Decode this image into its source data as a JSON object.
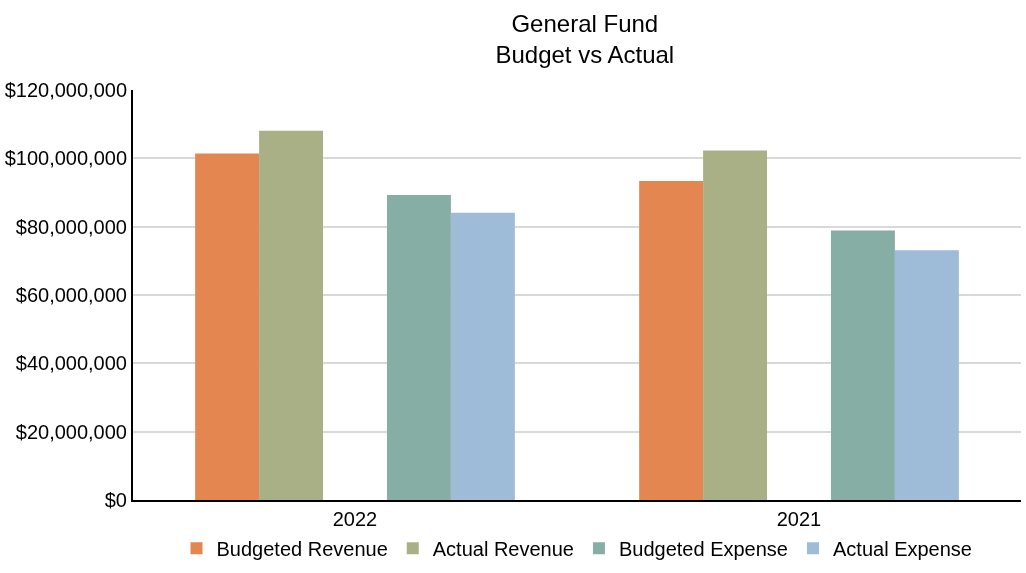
{
  "chart_data": {
    "type": "bar",
    "title": "General Fund\nBudget vs Actual",
    "categories": [
      "2022",
      "2021"
    ],
    "series": [
      {
        "name": "Budgeted Revenue",
        "color": "#e3864f",
        "values": [
          101400000,
          93400000
        ]
      },
      {
        "name": "Actual Revenue",
        "color": "#aab086",
        "values": [
          108100000,
          102300000
        ]
      },
      {
        "name": "Budgeted Expense",
        "color": "#86aea4",
        "values": [
          89300000,
          78900000
        ]
      },
      {
        "name": "Actual Expense",
        "color": "#9ebbd7",
        "values": [
          84100000,
          73100000
        ]
      }
    ],
    "ylim": [
      0,
      120000000
    ],
    "yticks": [
      {
        "value": 0,
        "label": "$0"
      },
      {
        "value": 20000000,
        "label": "$20,000,000"
      },
      {
        "value": 40000000,
        "label": "$40,000,000"
      },
      {
        "value": 60000000,
        "label": "$60,000,000"
      },
      {
        "value": 80000000,
        "label": "$80,000,000"
      },
      {
        "value": 100000000,
        "label": "$100,000,000"
      },
      {
        "value": 120000000,
        "label": "$120,000,000"
      }
    ],
    "grid": "y",
    "legend": "bottom"
  }
}
